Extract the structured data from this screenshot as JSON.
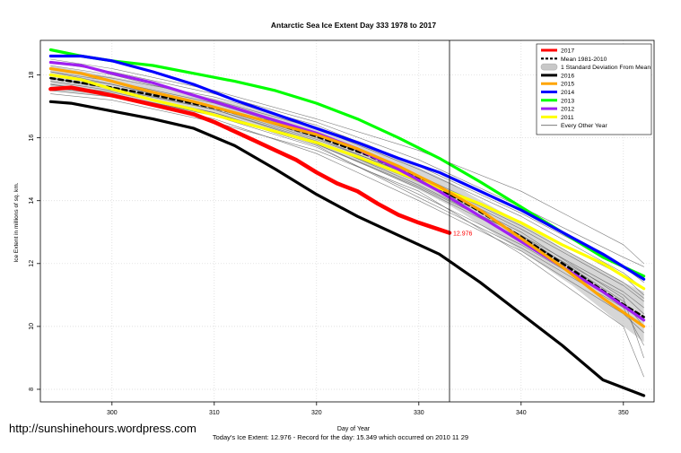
{
  "watermark": "http://sunshinehours.wordpress.com",
  "footer": "Today's Ice Extent: 12.976  - Record for the day: 15.349 which occurred on 2010 11 29",
  "chart_data": {
    "type": "line",
    "title": "Antarctic Sea Ice Extent Day 333 1978 to 2017",
    "xlabel": "Day of Year",
    "ylabel": "Ice Extent in millions of sq. km.",
    "xlim": [
      293,
      353
    ],
    "ylim": [
      7.6,
      19.1
    ],
    "xticks": [
      300,
      310,
      320,
      330,
      340,
      350
    ],
    "yticks": [
      8,
      10,
      12,
      14,
      16,
      18
    ],
    "grid": true,
    "legend_position": "top-right",
    "vline_x": 333,
    "current_value_label": "12.976",
    "colors": {
      "2017": "#ff0000",
      "mean": "#000000",
      "band": "#c8c8c8",
      "2016": "#000000",
      "2015": "#ffa500",
      "2014": "#0000ff",
      "2013": "#00ff00",
      "2012": "#a020f0",
      "2011": "#ffff00",
      "other": "#666666"
    },
    "legend": [
      {
        "label": "2017",
        "key": "2017",
        "style": "thick"
      },
      {
        "label": "Mean 1981-2010",
        "key": "mean",
        "style": "dashed"
      },
      {
        "label": "1 Standard Deviation From Mean",
        "key": "band",
        "style": "band"
      },
      {
        "label": "2016",
        "key": "2016",
        "style": "thick"
      },
      {
        "label": "2015",
        "key": "2015",
        "style": "thick"
      },
      {
        "label": "2014",
        "key": "2014",
        "style": "thick"
      },
      {
        "label": "2013",
        "key": "2013",
        "style": "thick"
      },
      {
        "label": "2012",
        "key": "2012",
        "style": "thick"
      },
      {
        "label": "2011",
        "key": "2011",
        "style": "thick"
      },
      {
        "label": "Every Other Year",
        "key": "other",
        "style": "thin"
      }
    ],
    "band": {
      "x": [
        294,
        300,
        305,
        310,
        315,
        320,
        325,
        330,
        333,
        335,
        340,
        345,
        350,
        352
      ],
      "upper": [
        18.3,
        17.95,
        17.6,
        17.25,
        16.85,
        16.35,
        15.8,
        15.05,
        14.6,
        14.2,
        13.3,
        12.3,
        11.4,
        11.1
      ],
      "lower": [
        17.5,
        17.3,
        17.0,
        16.7,
        16.3,
        15.75,
        15.1,
        14.35,
        13.85,
        13.45,
        12.4,
        11.3,
        10.0,
        9.5
      ]
    },
    "series": [
      {
        "name": "Every Other Year",
        "key": "other",
        "x": [
          294,
          300,
          310,
          320,
          330,
          340,
          350,
          352
        ],
        "y": [
          18.4,
          18.1,
          17.4,
          16.5,
          15.3,
          13.8,
          12.2,
          11.9
        ]
      },
      {
        "name": "Every Other Year",
        "key": "other",
        "x": [
          294,
          300,
          310,
          320,
          330,
          340,
          350,
          352
        ],
        "y": [
          18.1,
          17.8,
          17.1,
          16.1,
          14.8,
          13.3,
          11.6,
          11.0
        ]
      },
      {
        "name": "Every Other Year",
        "key": "other",
        "x": [
          294,
          300,
          310,
          320,
          330,
          340,
          350,
          352
        ],
        "y": [
          17.9,
          17.6,
          16.9,
          15.9,
          14.5,
          12.9,
          11.1,
          10.6
        ]
      },
      {
        "name": "Every Other Year",
        "key": "other",
        "x": [
          294,
          300,
          310,
          320,
          330,
          340,
          350,
          352
        ],
        "y": [
          17.7,
          17.4,
          16.7,
          15.7,
          14.2,
          12.6,
          10.7,
          10.2
        ]
      },
      {
        "name": "Every Other Year",
        "key": "other",
        "x": [
          294,
          300,
          310,
          320,
          330,
          340,
          350,
          352
        ],
        "y": [
          17.5,
          17.3,
          16.6,
          15.5,
          14.0,
          12.4,
          10.4,
          9.8
        ]
      },
      {
        "name": "Every Other Year",
        "key": "other",
        "x": [
          294,
          300,
          310,
          320,
          330,
          340,
          350,
          352
        ],
        "y": [
          18.2,
          17.9,
          17.3,
          16.4,
          15.1,
          13.6,
          11.9,
          11.4
        ]
      },
      {
        "name": "Every Other Year",
        "key": "other",
        "x": [
          294,
          300,
          310,
          320,
          330,
          340,
          350,
          352
        ],
        "y": [
          17.8,
          17.5,
          16.8,
          15.8,
          14.4,
          12.8,
          11.0,
          10.4
        ]
      },
      {
        "name": "Every Other Year",
        "key": "other",
        "x": [
          294,
          300,
          310,
          320,
          330,
          340,
          350,
          352
        ],
        "y": [
          18.0,
          17.7,
          17.0,
          16.0,
          14.7,
          13.1,
          11.3,
          10.8
        ]
      },
      {
        "name": "Every Other Year",
        "key": "other",
        "x": [
          294,
          300,
          310,
          320,
          330,
          340,
          350,
          352
        ],
        "y": [
          17.6,
          17.35,
          16.75,
          15.75,
          14.1,
          12.5,
          10.6,
          9.4
        ]
      },
      {
        "name": "Every Other Year",
        "key": "other",
        "x": [
          294,
          300,
          310,
          320,
          330,
          340,
          350,
          352
        ],
        "y": [
          18.3,
          18.0,
          17.2,
          16.3,
          15.0,
          13.5,
          11.7,
          11.2
        ]
      },
      {
        "name": "Every Other Year",
        "key": "other",
        "x": [
          294,
          300,
          310,
          320,
          330,
          340,
          350,
          352
        ],
        "y": [
          17.4,
          17.2,
          16.5,
          15.6,
          14.3,
          12.3,
          10.0,
          8.4
        ]
      },
      {
        "name": "Every Other Year",
        "key": "other",
        "x": [
          294,
          300,
          310,
          320,
          330,
          340,
          350,
          352
        ],
        "y": [
          18.5,
          18.2,
          17.5,
          16.6,
          15.6,
          14.3,
          12.6,
          12.0
        ]
      },
      {
        "name": "Every Other Year",
        "key": "other",
        "x": [
          294,
          300,
          310,
          320,
          330,
          340,
          350,
          352
        ],
        "y": [
          17.9,
          17.55,
          16.9,
          15.85,
          14.6,
          13.0,
          10.9,
          9.0
        ]
      },
      {
        "name": "Every Other Year",
        "key": "other",
        "x": [
          294,
          300,
          310,
          320,
          330,
          340,
          350,
          352
        ],
        "y": [
          18.1,
          17.7,
          16.95,
          15.95,
          14.75,
          13.2,
          11.4,
          10.9
        ]
      },
      {
        "name": "Every Other Year",
        "key": "other",
        "x": [
          294,
          300,
          310,
          320,
          330,
          340,
          350,
          352
        ],
        "y": [
          17.7,
          17.45,
          16.8,
          15.8,
          14.45,
          12.9,
          10.8,
          10.0
        ]
      },
      {
        "name": "Mean 1981-2010",
        "key": "mean",
        "x": [
          294,
          300,
          305,
          310,
          315,
          320,
          325,
          330,
          333,
          335,
          340,
          345,
          350,
          352
        ],
        "y": [
          17.9,
          17.6,
          17.3,
          16.95,
          16.55,
          16.05,
          15.45,
          14.7,
          14.2,
          13.85,
          12.85,
          11.8,
          10.7,
          10.3
        ]
      },
      {
        "name": "2011",
        "key": "2011",
        "x": [
          294,
          297,
          300,
          304,
          308,
          312,
          316,
          320,
          324,
          328,
          332,
          336,
          340,
          344,
          348,
          352
        ],
        "y": [
          18.0,
          17.85,
          17.55,
          17.2,
          16.9,
          16.55,
          16.2,
          15.85,
          15.4,
          14.9,
          14.4,
          13.9,
          13.3,
          12.6,
          12.0,
          11.2
        ]
      },
      {
        "name": "2012",
        "key": "2012",
        "x": [
          294,
          297,
          300,
          304,
          308,
          312,
          316,
          320,
          324,
          328,
          332,
          336,
          340,
          344,
          348,
          352
        ],
        "y": [
          18.4,
          18.3,
          18.05,
          17.75,
          17.35,
          16.95,
          16.55,
          16.15,
          15.65,
          15.0,
          14.3,
          13.5,
          12.7,
          11.9,
          11.1,
          10.2
        ]
      },
      {
        "name": "2013",
        "key": "2013",
        "x": [
          294,
          297,
          300,
          304,
          308,
          312,
          316,
          320,
          324,
          328,
          332,
          336,
          340,
          344,
          348,
          352
        ],
        "y": [
          18.8,
          18.6,
          18.45,
          18.3,
          18.05,
          17.8,
          17.5,
          17.1,
          16.6,
          16.0,
          15.35,
          14.6,
          13.8,
          13.0,
          12.2,
          11.6
        ]
      },
      {
        "name": "2014",
        "key": "2014",
        "x": [
          294,
          297,
          300,
          304,
          308,
          312,
          316,
          320,
          324,
          328,
          332,
          336,
          340,
          344,
          348,
          352
        ],
        "y": [
          18.6,
          18.6,
          18.45,
          18.1,
          17.7,
          17.2,
          16.75,
          16.3,
          15.85,
          15.35,
          14.9,
          14.3,
          13.7,
          13.0,
          12.3,
          11.5
        ]
      },
      {
        "name": "2015",
        "key": "2015",
        "x": [
          294,
          297,
          300,
          304,
          308,
          312,
          316,
          320,
          324,
          328,
          332,
          336,
          340,
          344,
          348,
          352
        ],
        "y": [
          18.2,
          18.05,
          17.8,
          17.45,
          17.15,
          16.8,
          16.45,
          16.1,
          15.65,
          15.1,
          14.45,
          13.7,
          12.8,
          11.9,
          10.9,
          10.0
        ]
      },
      {
        "name": "2016",
        "key": "2016",
        "x": [
          294,
          296,
          300,
          304,
          308,
          312,
          316,
          320,
          324,
          328,
          332,
          336,
          340,
          344,
          348,
          352
        ],
        "y": [
          17.15,
          17.1,
          16.85,
          16.6,
          16.3,
          15.75,
          15.0,
          14.2,
          13.5,
          12.9,
          12.3,
          11.4,
          10.4,
          9.4,
          8.3,
          7.8
        ]
      },
      {
        "name": "2017",
        "key": "2017",
        "x": [
          294,
          296,
          300,
          304,
          308,
          310,
          312,
          314,
          316,
          318,
          320,
          322,
          324,
          326,
          328,
          330,
          333
        ],
        "y": [
          17.55,
          17.6,
          17.35,
          17.05,
          16.75,
          16.5,
          16.2,
          15.9,
          15.6,
          15.3,
          14.9,
          14.55,
          14.3,
          13.9,
          13.55,
          13.3,
          12.976
        ]
      }
    ]
  }
}
